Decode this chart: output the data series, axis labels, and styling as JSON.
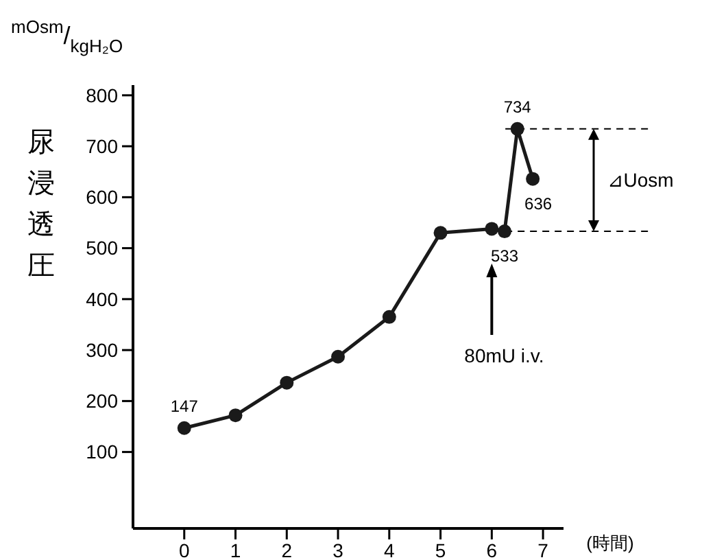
{
  "chart_data": {
    "type": "line",
    "ylabel": "尿浸透圧",
    "xlabel": "(時間)",
    "x": [
      0,
      1,
      2,
      3,
      4,
      5,
      6,
      6.25,
      6.5,
      6.8
    ],
    "series": [
      {
        "color": "#1a1a1a",
        "values": [
          147,
          172,
          236,
          287,
          365,
          530,
          538,
          533,
          734,
          636
        ],
        "value_labels": [
          "147",
          null,
          null,
          null,
          null,
          null,
          null,
          "533",
          "734",
          "636"
        ]
      }
    ],
    "xlim": [
      -1,
      7.4
    ],
    "xticks": [
      0,
      1,
      2,
      3,
      4,
      5,
      6,
      7
    ],
    "ylim": [
      -50,
      820
    ],
    "yticks": [
      100,
      200,
      300,
      400,
      500,
      600,
      700,
      800
    ],
    "marker": "circle",
    "line_style": "solid",
    "grid": false,
    "ref_lines": [
      {
        "axis": "y",
        "value": 734,
        "line_style": "dashed"
      },
      {
        "axis": "y",
        "value": 533,
        "line_style": "dashed"
      }
    ],
    "annotations": [
      "mOsm/kgH₂O",
      "⊿Uosm",
      "80mU i.v."
    ]
  }
}
